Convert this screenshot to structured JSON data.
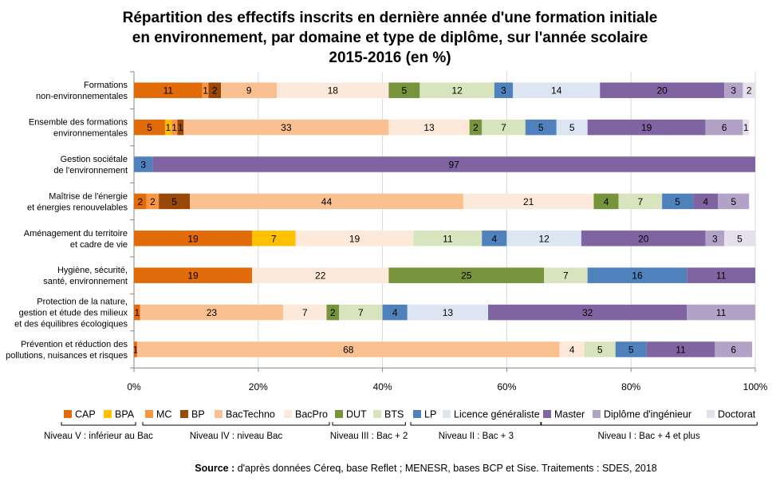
{
  "chart_data": {
    "type": "bar",
    "orientation": "horizontal",
    "stacked": true,
    "title_lines": [
      "Répartition des effectifs inscrits en dernière année d'une formation initiale",
      "en environnement, par domaine et type de diplôme, sur l'année scolaire",
      "2015-2016 (en %)"
    ],
    "xlim": [
      0,
      100
    ],
    "x_ticks": [
      "0%",
      "20%",
      "40%",
      "60%",
      "80%",
      "100%"
    ],
    "categories": [
      [
        "Formations",
        "non-environnementales"
      ],
      [
        "Ensemble des formations",
        "environnementales"
      ],
      [
        "Gestion sociétale",
        "de l'environnement"
      ],
      [
        "Maîtrise de l'énergie",
        "et énergies renouvelables"
      ],
      [
        "Aménagement du territoire",
        "et cadre de vie"
      ],
      [
        "Hygiène, sécurité,",
        "santé, environnement"
      ],
      [
        "Protection de la nature,",
        "gestion et étude des milieux",
        "et des équilibres écologiques"
      ],
      [
        "Prévention et réduction des",
        "pollutions, nuisances et risques"
      ]
    ],
    "series": [
      {
        "name": "CAP",
        "color": "#E36C0A",
        "values": [
          11,
          5,
          0,
          2,
          19,
          19,
          1,
          0.5
        ],
        "labels": [
          "11",
          "5",
          "",
          "2",
          "19",
          "19",
          "1",
          "1"
        ]
      },
      {
        "name": "BPA",
        "color": "#FFC000",
        "values": [
          0,
          1,
          0,
          0,
          7,
          0,
          0,
          0
        ],
        "labels": [
          "",
          "1",
          "",
          "",
          "7",
          "",
          "",
          ""
        ]
      },
      {
        "name": "MC",
        "color": "#F79646",
        "values": [
          1,
          1,
          0,
          2,
          0,
          0,
          0,
          0
        ],
        "labels": [
          "1",
          "1",
          "",
          "2",
          "",
          "",
          "",
          ""
        ]
      },
      {
        "name": "BP",
        "color": "#984807",
        "values": [
          2,
          1,
          0,
          5,
          0,
          0,
          0,
          0
        ],
        "labels": [
          "2",
          "1",
          "",
          "5",
          "",
          "",
          "",
          ""
        ]
      },
      {
        "name": "BacTechno",
        "color": "#FAC090",
        "values": [
          9,
          33,
          0,
          44,
          0,
          0,
          23,
          68
        ],
        "labels": [
          "9",
          "33",
          "",
          "44",
          "",
          "",
          "23",
          "68"
        ]
      },
      {
        "name": "BacPro",
        "color": "#FDE9D9",
        "values": [
          18,
          13,
          0,
          21,
          19,
          22,
          7,
          4
        ],
        "labels": [
          "18",
          "13",
          "",
          "21",
          "19",
          "22",
          "7",
          "4"
        ]
      },
      {
        "name": "DUT",
        "color": "#77933C",
        "values": [
          5,
          2,
          0,
          4,
          0,
          25,
          2,
          0
        ],
        "labels": [
          "5",
          "2",
          "",
          "4",
          "",
          "25",
          "2",
          ""
        ]
      },
      {
        "name": "BTS",
        "color": "#D7E4BD",
        "values": [
          12,
          7,
          0,
          7,
          11,
          7,
          7,
          5
        ],
        "labels": [
          "12",
          "7",
          "",
          "7",
          "11",
          "7",
          "7",
          "5"
        ]
      },
      {
        "name": "LP",
        "color": "#4F81BD",
        "values": [
          3,
          5,
          3,
          5,
          4,
          16,
          4,
          5
        ],
        "labels": [
          "3",
          "5",
          "3",
          "5",
          "4",
          "16",
          "4",
          "5"
        ]
      },
      {
        "name": "Licence généraliste",
        "color": "#DCE6F2",
        "values": [
          14,
          5,
          0,
          0,
          12,
          0,
          13,
          0
        ],
        "labels": [
          "14",
          "5",
          "",
          "",
          "12",
          "",
          "13",
          ""
        ]
      },
      {
        "name": "Master",
        "color": "#8064A2",
        "values": [
          20,
          19,
          97,
          4,
          20,
          11,
          32,
          11
        ],
        "labels": [
          "20",
          "19",
          "97",
          "4",
          "20",
          "11",
          "32",
          "11"
        ]
      },
      {
        "name": "Diplôme d'ingénieur",
        "color": "#B3A2C7",
        "values": [
          3,
          6,
          0,
          5,
          3,
          0,
          11,
          6
        ],
        "labels": [
          "3",
          "6",
          "",
          "5",
          "3",
          "",
          "11",
          "6"
        ]
      },
      {
        "name": "Doctorat",
        "color": "#E6E0EC",
        "values": [
          2,
          1,
          0,
          0,
          5,
          0,
          0,
          0
        ],
        "labels": [
          "2",
          "1",
          "",
          "",
          "5",
          "",
          "",
          ""
        ]
      }
    ],
    "level_groups": [
      {
        "label": "Niveau V : inférieur au Bac",
        "from": 0,
        "to": 1
      },
      {
        "label": "Niveau IV : niveau Bac",
        "from": 2,
        "to": 5
      },
      {
        "label": "Niveau III : Bac + 2",
        "from": 6,
        "to": 7
      },
      {
        "label": "Niveau II :  Bac + 3",
        "from": 8,
        "to": 9
      },
      {
        "label": "Niveau I : Bac + 4 et plus",
        "from": 10,
        "to": 12
      }
    ],
    "grid": "vertical"
  },
  "source": {
    "prefix": "Source :",
    "text": " d'après données Céreq, base Reflet ; MENESR, bases BCP et Sise. Traitements : SDES, 2018"
  }
}
